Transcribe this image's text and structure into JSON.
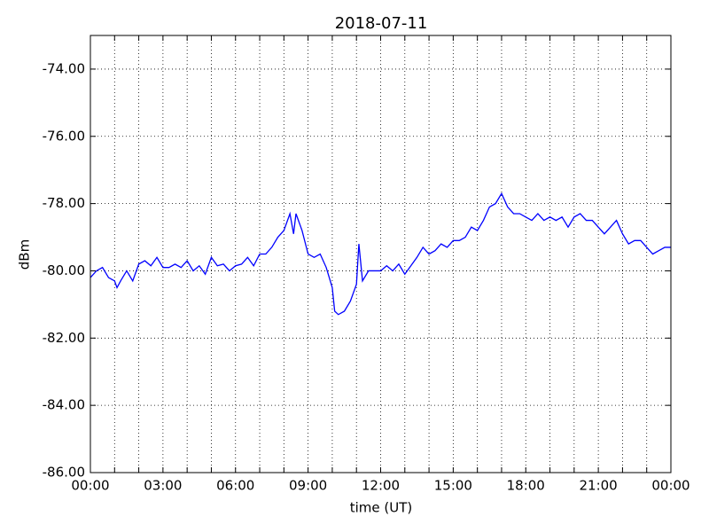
{
  "chart_data": {
    "type": "line",
    "title": "2018-07-11",
    "xlabel": "time (UT)",
    "ylabel": "dBm",
    "x": [
      0,
      0.25,
      0.5,
      0.75,
      1,
      1.1,
      1.25,
      1.5,
      1.75,
      2,
      2.25,
      2.5,
      2.75,
      3,
      3.25,
      3.5,
      3.75,
      4,
      4.25,
      4.5,
      4.75,
      5,
      5.25,
      5.5,
      5.75,
      6,
      6.25,
      6.5,
      6.75,
      7,
      7.25,
      7.5,
      7.75,
      8,
      8.25,
      8.4,
      8.5,
      8.75,
      9,
      9.25,
      9.5,
      9.75,
      10,
      10.1,
      10.25,
      10.5,
      10.75,
      11,
      11.1,
      11.25,
      11.5,
      11.75,
      12,
      12.25,
      12.5,
      12.75,
      13,
      13.25,
      13.5,
      13.75,
      14,
      14.25,
      14.5,
      14.75,
      15,
      15.25,
      15.5,
      15.75,
      16,
      16.25,
      16.5,
      16.75,
      17,
      17.25,
      17.5,
      17.75,
      18,
      18.25,
      18.5,
      18.75,
      19,
      19.25,
      19.5,
      19.75,
      20,
      20.25,
      20.5,
      20.75,
      21,
      21.25,
      21.5,
      21.75,
      22,
      22.25,
      22.5,
      22.75,
      23,
      23.25,
      23.5,
      23.75,
      24
    ],
    "series": [
      {
        "name": "dBm",
        "color": "#0000ff",
        "values": [
          -80.2,
          -80.0,
          -79.9,
          -80.2,
          -80.3,
          -80.5,
          -80.3,
          -80.0,
          -80.3,
          -79.8,
          -79.7,
          -79.85,
          -79.6,
          -79.9,
          -79.9,
          -79.8,
          -79.9,
          -79.7,
          -80.0,
          -79.85,
          -80.1,
          -79.6,
          -79.85,
          -79.8,
          -80.0,
          -79.85,
          -79.8,
          -79.6,
          -79.85,
          -79.5,
          -79.5,
          -79.3,
          -79.0,
          -78.8,
          -78.3,
          -78.9,
          -78.3,
          -78.8,
          -79.5,
          -79.6,
          -79.5,
          -79.9,
          -80.5,
          -81.2,
          -81.3,
          -81.2,
          -80.9,
          -80.4,
          -79.2,
          -80.3,
          -80.0,
          -80.0,
          -80.0,
          -79.85,
          -80.0,
          -79.8,
          -80.1,
          -79.85,
          -79.6,
          -79.3,
          -79.5,
          -79.4,
          -79.2,
          -79.3,
          -79.1,
          -79.1,
          -79.0,
          -78.7,
          -78.8,
          -78.5,
          -78.1,
          -78.0,
          -77.7,
          -78.1,
          -78.3,
          -78.3,
          -78.4,
          -78.5,
          -78.3,
          -78.5,
          -78.4,
          -78.5,
          -78.4,
          -78.7,
          -78.4,
          -78.3,
          -78.5,
          -78.5,
          -78.7,
          -78.9,
          -78.7,
          -78.5,
          -78.9,
          -79.2,
          -79.1,
          -79.1,
          -79.3,
          -79.5,
          -79.4,
          -79.3,
          -79.3
        ]
      }
    ],
    "xlim": [
      0,
      24
    ],
    "xticks": [
      {
        "value": 0,
        "label": "00:00"
      },
      {
        "value": 3,
        "label": "03:00"
      },
      {
        "value": 6,
        "label": "06:00"
      },
      {
        "value": 9,
        "label": "09:00"
      },
      {
        "value": 12,
        "label": "12:00"
      },
      {
        "value": 15,
        "label": "15:00"
      },
      {
        "value": 18,
        "label": "18:00"
      },
      {
        "value": 21,
        "label": "21:00"
      },
      {
        "value": 24,
        "label": "00:00"
      }
    ],
    "x_minor_ticks": [
      1,
      2,
      4,
      5,
      7,
      8,
      10,
      11,
      13,
      14,
      16,
      17,
      19,
      20,
      22,
      23
    ],
    "ylim": [
      -86,
      -73
    ],
    "yticks": [
      {
        "value": -86,
        "label": "-86.00"
      },
      {
        "value": -84,
        "label": "-84.00"
      },
      {
        "value": -82,
        "label": "-82.00"
      },
      {
        "value": -80,
        "label": "-80.00"
      },
      {
        "value": -78,
        "label": "-78.00"
      },
      {
        "value": -76,
        "label": "-76.00"
      },
      {
        "value": -74,
        "label": "-74.00"
      }
    ],
    "grid": true
  }
}
